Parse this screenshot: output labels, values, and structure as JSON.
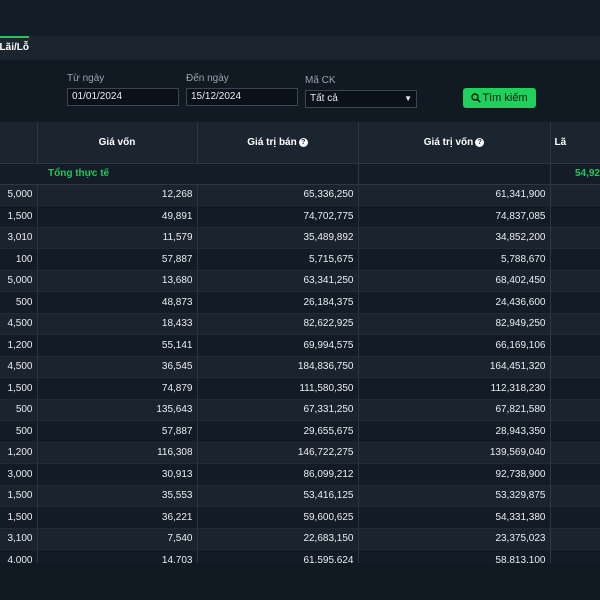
{
  "tab": {
    "label": "Lãi/Lỗ"
  },
  "filters": {
    "from_label": "Từ ngày",
    "from_value": "01/01/2024",
    "to_label": "Đến ngày",
    "to_value": "15/12/2024",
    "code_label": "Mã CK",
    "code_value": "Tất cả",
    "search_label": "Tìm kiếm"
  },
  "table": {
    "headers": [
      "Giá vốn",
      "Giá trị bán",
      "Giá trị vốn",
      "Lã"
    ],
    "total": {
      "label": "Tổng thực tế",
      "value": "54,92"
    },
    "rows": [
      [
        "5,000",
        "12,268",
        "65,336,250",
        "61,341,900"
      ],
      [
        "1,500",
        "49,891",
        "74,702,775",
        "74,837,085"
      ],
      [
        "3,010",
        "11,579",
        "35,489,892",
        "34,852,200"
      ],
      [
        "100",
        "57,887",
        "5,715,675",
        "5,788,670"
      ],
      [
        "5,000",
        "13,680",
        "63,341,250",
        "68,402,450"
      ],
      [
        "500",
        "48,873",
        "26,184,375",
        "24,436,600"
      ],
      [
        "4,500",
        "18,433",
        "82,622,925",
        "82,949,250"
      ],
      [
        "1,200",
        "55,141",
        "69,994,575",
        "66,169,106"
      ],
      [
        "4,500",
        "36,545",
        "184,836,750",
        "164,451,320"
      ],
      [
        "1,500",
        "74,879",
        "111,580,350",
        "112,318,230"
      ],
      [
        "500",
        "135,643",
        "67,331,250",
        "67,821,580"
      ],
      [
        "500",
        "57,887",
        "29,655,675",
        "28,943,350"
      ],
      [
        "1,200",
        "116,308",
        "146,722,275",
        "139,569,040"
      ],
      [
        "3,000",
        "30,913",
        "86,099,212",
        "92,738,900"
      ],
      [
        "1,500",
        "35,553",
        "53,416,125",
        "53,329,875"
      ],
      [
        "1,500",
        "36,221",
        "59,600,625",
        "54,331,380"
      ],
      [
        "3,100",
        "7,540",
        "22,683,150",
        "23,375,023"
      ],
      [
        "4,000",
        "14,703",
        "61,595,624",
        "58,813,100"
      ]
    ]
  },
  "colors": {
    "accent": "#21c65a",
    "background": "#111923",
    "header": "#1b2530"
  }
}
